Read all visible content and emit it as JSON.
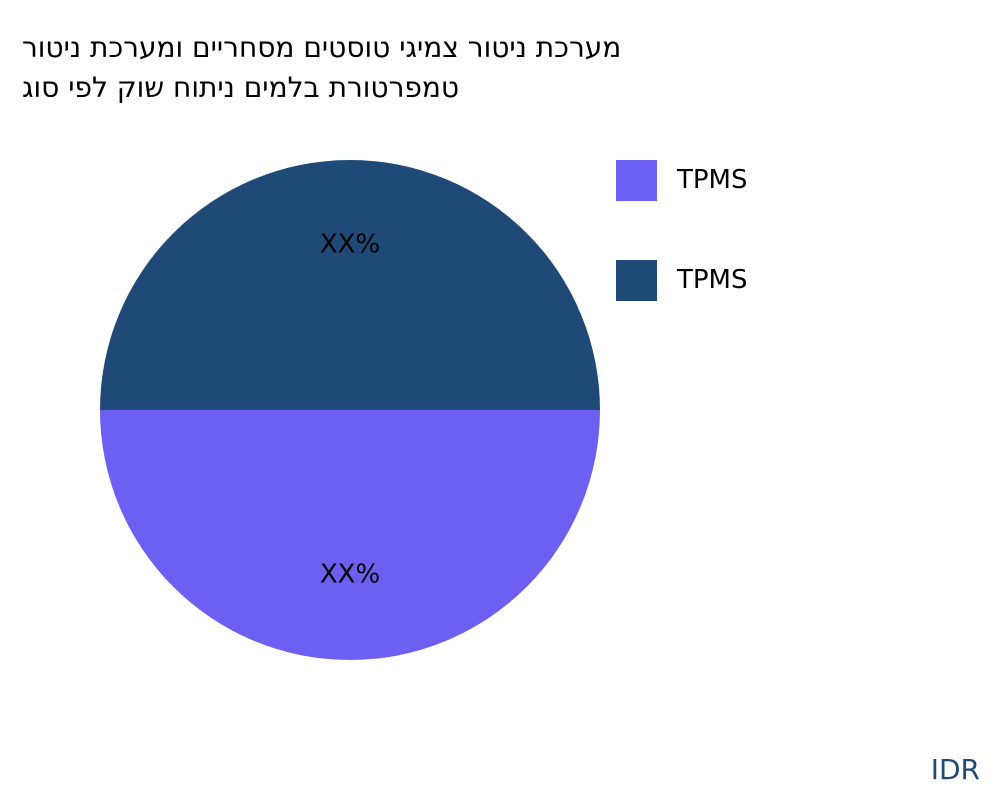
{
  "chart_data": {
    "type": "pie",
    "title_lines": [
      "מערכת ניטור צמיגי טוסטים מסחריים ומערכת ניטור",
      "טמפרטורת בלמים ניתוח שוק לפי סוג"
    ],
    "slices": [
      {
        "label": "TPMS",
        "value": 50,
        "data_label": "XX%",
        "color": "#6c5ff2"
      },
      {
        "label": "TPMS",
        "value": 50,
        "data_label": "XX%",
        "color": "#1f4a78"
      }
    ],
    "legend_placement": "right"
  },
  "brand": {
    "text": "IDR",
    "color": "#1f4a78"
  }
}
